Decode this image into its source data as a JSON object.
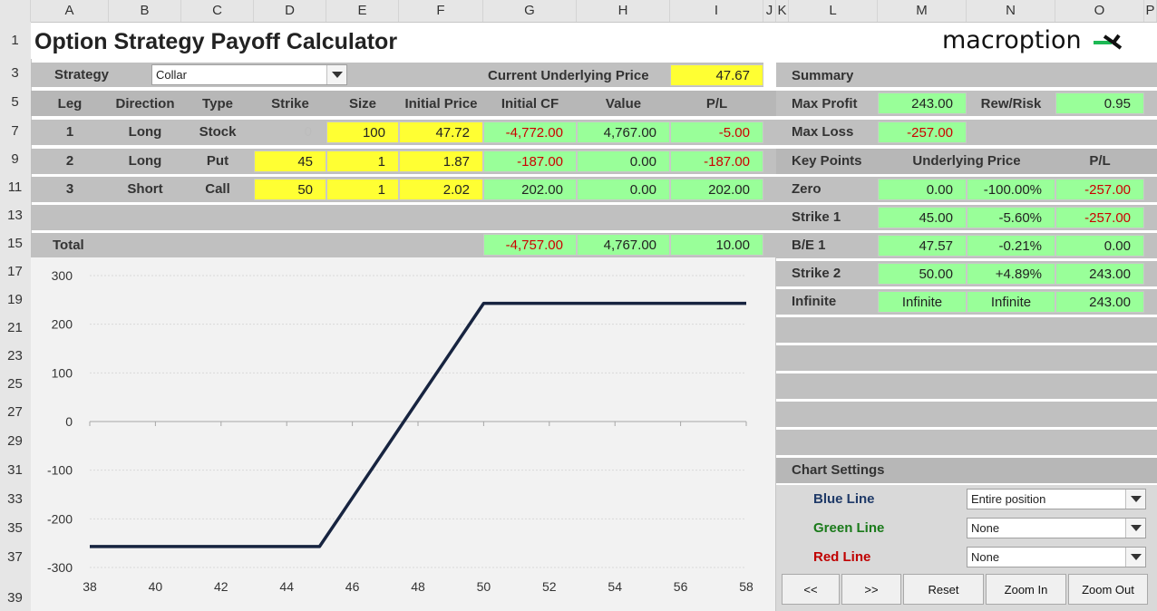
{
  "columns": [
    "A",
    "B",
    "C",
    "D",
    "E",
    "F",
    "G",
    "H",
    "I",
    "J",
    "K",
    "L",
    "M",
    "N",
    "O",
    "P"
  ],
  "rows": [
    "1",
    "3",
    "5",
    "7",
    "9",
    "11",
    "13",
    "15",
    "17",
    "19",
    "21",
    "23",
    "25",
    "27",
    "29",
    "31",
    "33",
    "35",
    "37",
    "39"
  ],
  "title": "Option Strategy Payoff Calculator",
  "logo_text": "macroption",
  "colors": {
    "green": "#99ff99",
    "yellow": "#ffff33",
    "line": "#172440",
    "loss_red": "#cc0000"
  },
  "strategy": {
    "label": "Strategy",
    "value": "Collar",
    "price_label": "Current Underlying Price",
    "price": "47.67"
  },
  "legs_header": [
    "Leg",
    "Direction",
    "Type",
    "Strike",
    "Size",
    "Initial Price",
    "Initial CF",
    "Value",
    "P/L"
  ],
  "legs": [
    {
      "leg": "1",
      "direction": "Long",
      "type": "Stock",
      "strike": "0",
      "size": "100",
      "price": "47.72",
      "cf": "-4,772.00",
      "value": "4,767.00",
      "pl": "-5.00"
    },
    {
      "leg": "2",
      "direction": "Long",
      "type": "Put",
      "strike": "45",
      "size": "1",
      "price": "1.87",
      "cf": "-187.00",
      "value": "0.00",
      "pl": "-187.00"
    },
    {
      "leg": "3",
      "direction": "Short",
      "type": "Call",
      "strike": "50",
      "size": "1",
      "price": "2.02",
      "cf": "202.00",
      "value": "0.00",
      "pl": "202.00"
    }
  ],
  "total": {
    "label": "Total",
    "cf": "-4,757.00",
    "value": "4,767.00",
    "pl": "10.00"
  },
  "summary": {
    "title": "Summary",
    "max_profit_label": "Max Profit",
    "max_profit": "243.00",
    "rew_risk_label": "Rew/Risk",
    "rew_risk": "0.95",
    "max_loss_label": "Max Loss",
    "max_loss": "-257.00"
  },
  "key_points": {
    "header": [
      "Key Points",
      "Underlying Price",
      "P/L"
    ],
    "rows": [
      {
        "label": "Zero",
        "price": "0.00",
        "pct": "-100.00%",
        "pl": "-257.00"
      },
      {
        "label": "Strike 1",
        "price": "45.00",
        "pct": "-5.60%",
        "pl": "-257.00"
      },
      {
        "label": "B/E 1",
        "price": "47.57",
        "pct": "-0.21%",
        "pl": "0.00"
      },
      {
        "label": "Strike 2",
        "price": "50.00",
        "pct": "+4.89%",
        "pl": "243.00"
      },
      {
        "label": "Infinite",
        "price": "Infinite",
        "pct": "Infinite",
        "pl": "243.00"
      }
    ]
  },
  "chart_settings": {
    "title": "Chart Settings",
    "blue_label": "Blue Line",
    "blue_value": "Entire position",
    "green_label": "Green Line",
    "green_value": "None",
    "red_label": "Red Line",
    "red_value": "None"
  },
  "buttons": [
    "<<",
    ">>",
    "Reset",
    "Zoom In",
    "Zoom Out"
  ],
  "chart_data": {
    "type": "line",
    "x": [
      38,
      45,
      46,
      47,
      47.57,
      48,
      49,
      50,
      58
    ],
    "series": [
      {
        "values": [
          -257,
          -257,
          -157,
          -57,
          0,
          43,
          143,
          243,
          243
        ]
      }
    ],
    "xlim": [
      38,
      58
    ],
    "ylim": [
      -300,
      300
    ],
    "xticks": [
      "38",
      "40",
      "42",
      "44",
      "46",
      "48",
      "50",
      "52",
      "54",
      "56",
      "58"
    ],
    "yticks": [
      "300",
      "200",
      "100",
      "0",
      "-100",
      "-200",
      "-300"
    ],
    "grid": true
  }
}
